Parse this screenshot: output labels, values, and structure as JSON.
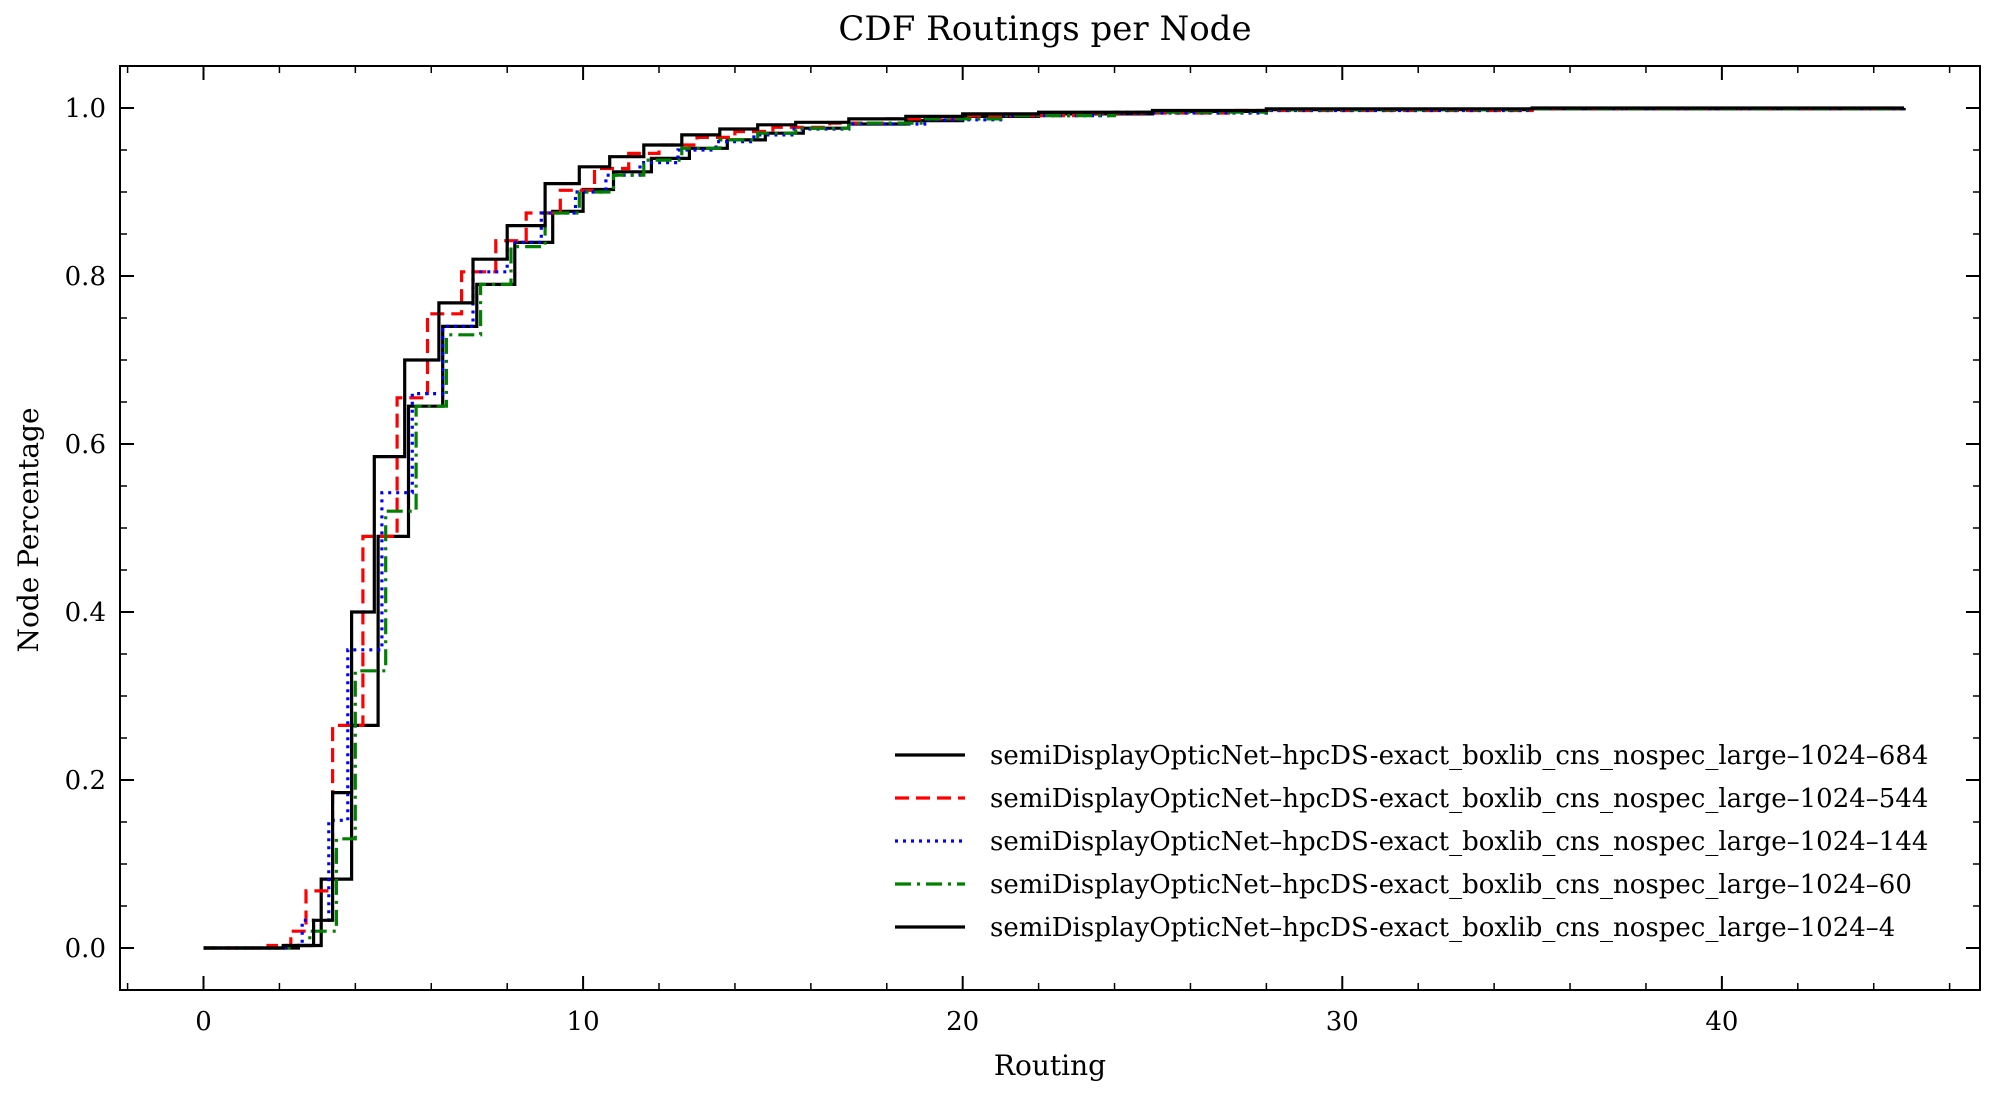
{
  "chart_data": {
    "type": "line",
    "subtype": "step-cdf",
    "title": "CDF Routings per Node",
    "xlabel": "Routing",
    "ylabel": "Node Percentage",
    "xlim": [
      -2.2,
      46.8
    ],
    "ylim": [
      -0.05,
      1.05
    ],
    "xticks": [
      0,
      10,
      20,
      30,
      40
    ],
    "yticks": [
      0.0,
      0.2,
      0.4,
      0.6,
      0.8,
      1.0
    ],
    "xtick_labels": [
      "0",
      "10",
      "20",
      "30",
      "40"
    ],
    "ytick_labels": [
      "0.0",
      "0.2",
      "0.4",
      "0.6",
      "0.8",
      "1.0"
    ],
    "grid": false,
    "legend_position": "lower-right",
    "series": [
      {
        "name": "semiDisplayOpticNet–hpcDS-exact_boxlib_cns_nospec_large–1024–684",
        "color": "#000000",
        "dash": "solid",
        "x": [
          0,
          2.5,
          3.1,
          3.9,
          4.6,
          5.4,
          6.3,
          7.2,
          8.2,
          9.2,
          10.0,
          10.8,
          11.8,
          12.8,
          13.8,
          14.8,
          15.8,
          17.0,
          18.5,
          20.0,
          22.0,
          25.0,
          28.0,
          35.0,
          44.8
        ],
        "y": [
          0.0,
          0.003,
          0.082,
          0.265,
          0.49,
          0.645,
          0.74,
          0.79,
          0.84,
          0.877,
          0.903,
          0.924,
          0.94,
          0.952,
          0.962,
          0.97,
          0.976,
          0.981,
          0.985,
          0.99,
          0.993,
          0.996,
          0.998,
          0.999,
          1.0
        ]
      },
      {
        "name": "semiDisplayOpticNet–hpcDS-exact_boxlib_cns_nospec_large–1024–544",
        "color": "#ff0000",
        "dash": "dashed",
        "x": [
          0,
          1.7,
          2.3,
          2.7,
          3.4,
          4.2,
          5.1,
          5.9,
          6.8,
          7.7,
          8.5,
          9.4,
          10.3,
          11.2,
          12.0,
          13.0,
          14.0,
          15.0,
          16.5,
          18.0,
          20.0,
          23.0,
          27.0,
          35.0,
          44.8
        ],
        "y": [
          0.0,
          0.003,
          0.02,
          0.068,
          0.265,
          0.49,
          0.655,
          0.755,
          0.805,
          0.842,
          0.875,
          0.902,
          0.928,
          0.946,
          0.956,
          0.965,
          0.972,
          0.977,
          0.982,
          0.987,
          0.991,
          0.994,
          0.997,
          0.999,
          1.0
        ]
      },
      {
        "name": "semiDisplayOpticNet–hpcDS-exact_boxlib_cns_nospec_large–1024–144",
        "color": "#0000ff",
        "dash": "dotted",
        "x": [
          0,
          2.3,
          2.6,
          3.3,
          3.8,
          4.7,
          5.5,
          6.3,
          7.1,
          8.0,
          8.9,
          9.8,
          10.6,
          11.5,
          12.5,
          13.5,
          14.5,
          15.5,
          17.0,
          19.0,
          21.0,
          24.0,
          28.0,
          35.0,
          44.8
        ],
        "y": [
          0.0,
          0.003,
          0.033,
          0.152,
          0.355,
          0.542,
          0.66,
          0.74,
          0.805,
          0.84,
          0.875,
          0.9,
          0.92,
          0.935,
          0.95,
          0.96,
          0.968,
          0.975,
          0.981,
          0.986,
          0.991,
          0.994,
          0.997,
          0.999,
          1.0
        ]
      },
      {
        "name": "semiDisplayOpticNet–hpcDS-exact_boxlib_cns_nospec_large–1024–60",
        "color": "#008000",
        "dash": "dashdot",
        "x": [
          0,
          2.3,
          2.8,
          3.5,
          4.0,
          4.8,
          5.6,
          6.4,
          7.3,
          8.1,
          9.0,
          9.9,
          10.8,
          11.6,
          12.6,
          13.6,
          14.6,
          15.6,
          17.0,
          19.0,
          21.0,
          24.0,
          28.0,
          35.0,
          44.8
        ],
        "y": [
          0.0,
          0.003,
          0.02,
          0.13,
          0.33,
          0.52,
          0.645,
          0.73,
          0.79,
          0.835,
          0.875,
          0.9,
          0.92,
          0.938,
          0.952,
          0.962,
          0.97,
          0.976,
          0.982,
          0.987,
          0.991,
          0.995,
          0.998,
          0.999,
          1.0
        ]
      },
      {
        "name": "semiDisplayOpticNet–hpcDS-exact_boxlib_cns_nospec_large–1024–4",
        "color": "#000000",
        "dash": "solid",
        "x": [
          0,
          2.1,
          2.9,
          3.4,
          3.9,
          4.5,
          5.3,
          6.2,
          7.1,
          8.0,
          9.0,
          9.9,
          10.7,
          11.6,
          12.6,
          13.6,
          14.6,
          15.6,
          17.0,
          18.5,
          20.0,
          22.0,
          25.0,
          28.0,
          35.0,
          44.8
        ],
        "y": [
          0.0,
          0.003,
          0.033,
          0.185,
          0.4,
          0.585,
          0.7,
          0.768,
          0.82,
          0.86,
          0.91,
          0.93,
          0.942,
          0.956,
          0.968,
          0.975,
          0.98,
          0.983,
          0.987,
          0.99,
          0.993,
          0.995,
          0.997,
          0.999,
          1.0,
          1.0
        ]
      }
    ]
  }
}
